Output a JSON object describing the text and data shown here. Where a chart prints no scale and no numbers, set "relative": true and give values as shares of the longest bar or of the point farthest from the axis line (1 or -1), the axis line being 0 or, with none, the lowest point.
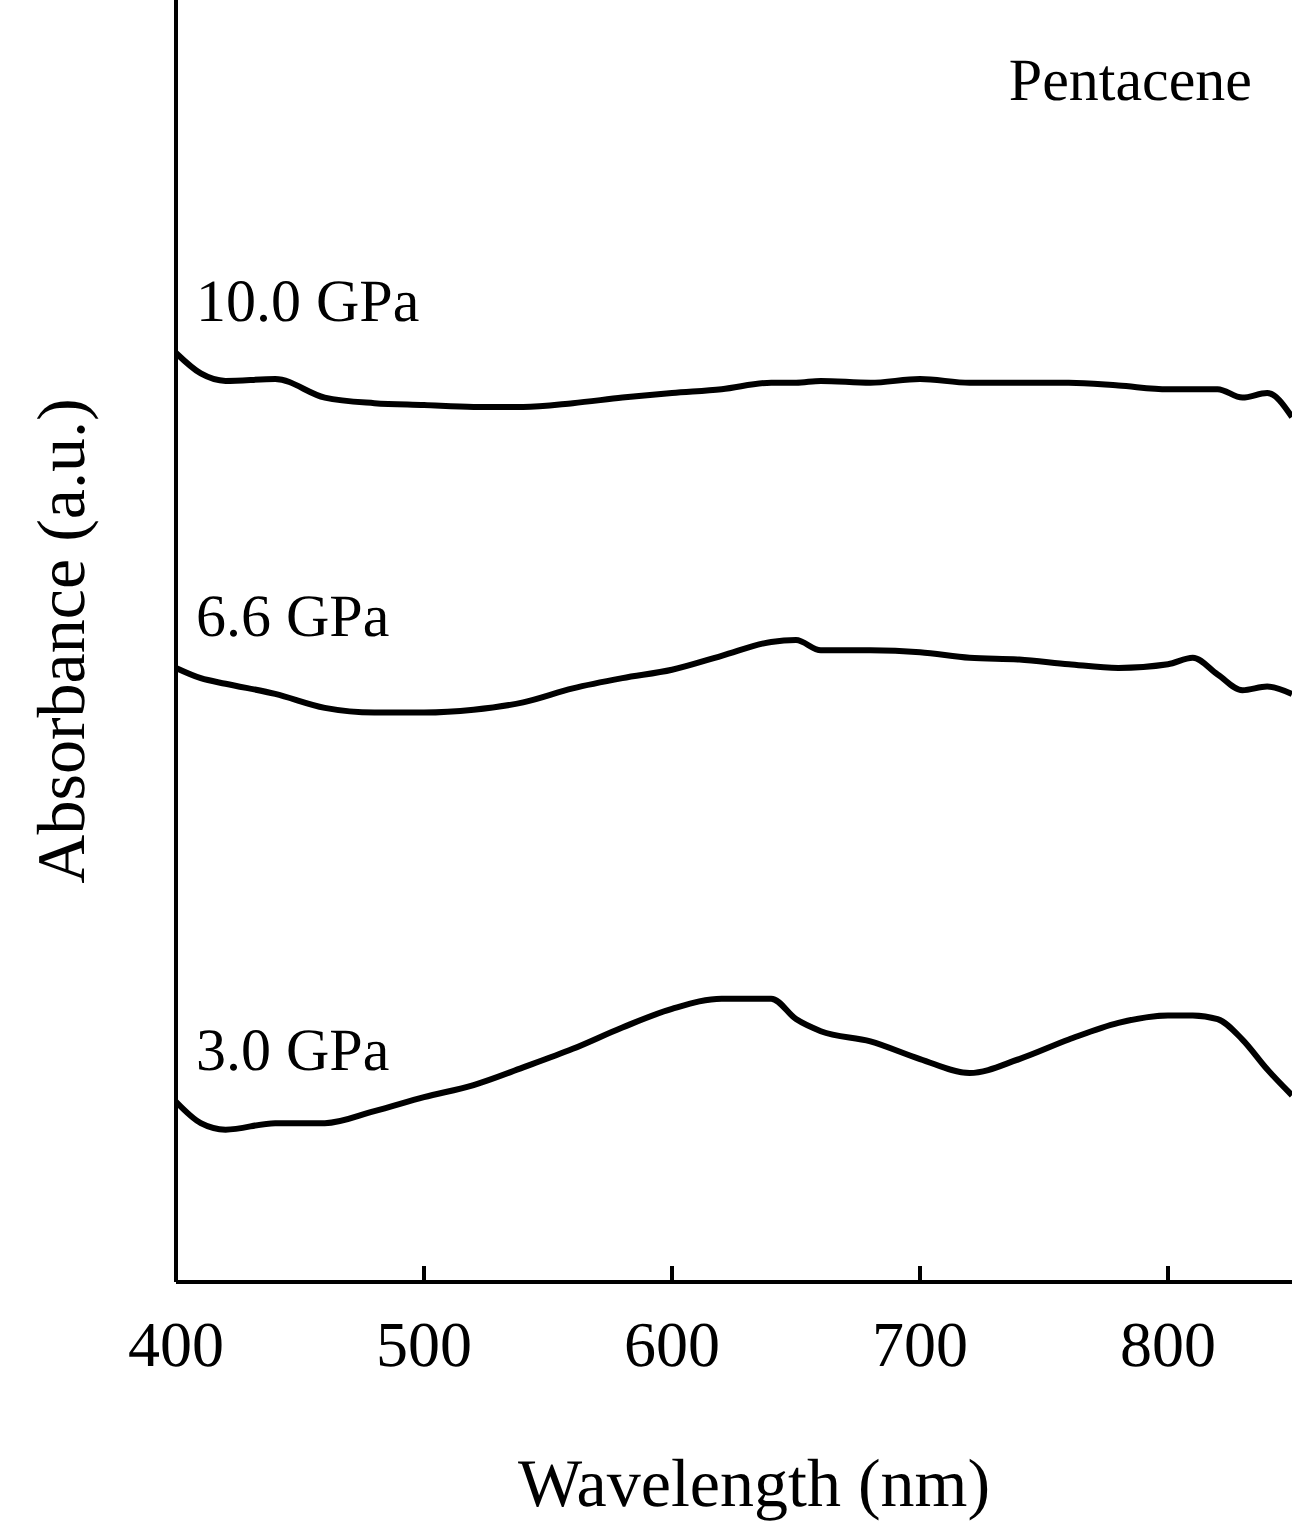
{
  "chart_data": {
    "type": "line",
    "relative": true,
    "xlabel": "Wavelength (nm)",
    "ylabel": "Absorbance (a.u.)",
    "xlim": [
      400,
      850
    ],
    "xticks": [
      400,
      500,
      600,
      700,
      800
    ],
    "annotations": [
      "Pentacene"
    ],
    "grid": false,
    "marker": "none",
    "line_style": "solid",
    "x": [
      400,
      410,
      420,
      440,
      460,
      480,
      500,
      520,
      540,
      560,
      580,
      600,
      620,
      640,
      650,
      660,
      680,
      700,
      720,
      740,
      760,
      780,
      800,
      810,
      820,
      830,
      840,
      850
    ],
    "series": [
      {
        "name": "10.0 GPa",
        "color": "#000000",
        "values": [
          1.0,
          0.978,
          0.97,
          0.972,
          0.952,
          0.946,
          0.944,
          0.942,
          0.942,
          0.946,
          0.952,
          0.957,
          0.961,
          0.968,
          0.968,
          0.97,
          0.968,
          0.972,
          0.968,
          0.968,
          0.968,
          0.965,
          0.961,
          0.961,
          0.961,
          0.952,
          0.957,
          0.931
        ]
      },
      {
        "name": "6.6 GPa",
        "color": "#000000",
        "values": [
          0.661,
          0.65,
          0.644,
          0.633,
          0.618,
          0.613,
          0.613,
          0.616,
          0.624,
          0.639,
          0.65,
          0.659,
          0.674,
          0.689,
          0.691,
          0.68,
          0.68,
          0.678,
          0.672,
          0.67,
          0.665,
          0.661,
          0.665,
          0.672,
          0.654,
          0.637,
          0.641,
          0.633
        ]
      },
      {
        "name": "3.0 GPa",
        "color": "#000000",
        "values": [
          0.194,
          0.171,
          0.164,
          0.171,
          0.171,
          0.184,
          0.199,
          0.212,
          0.231,
          0.251,
          0.274,
          0.294,
          0.305,
          0.305,
          0.283,
          0.27,
          0.259,
          0.24,
          0.225,
          0.24,
          0.261,
          0.279,
          0.287,
          0.287,
          0.283,
          0.261,
          0.229,
          0.201
        ]
      }
    ]
  }
}
